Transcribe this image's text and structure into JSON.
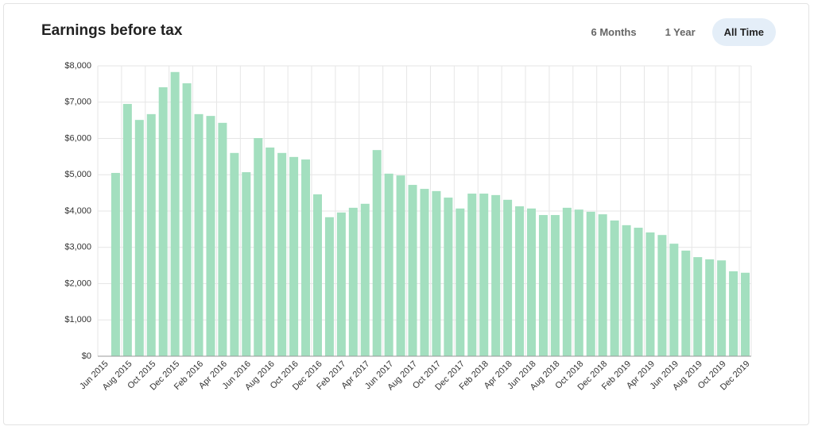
{
  "title": "Earnings before tax",
  "buttons": [
    "6 Months",
    "1 Year",
    "All Time"
  ],
  "active_button": 2,
  "chart_data": {
    "type": "bar",
    "color": "#a3dfbf",
    "grid": true,
    "categories": [
      "Jun 2015",
      null,
      "Aug 2015",
      null,
      "Oct 2015",
      null,
      "Dec 2015",
      null,
      "Feb 2016",
      null,
      "Apr 2016",
      null,
      "Jun 2016",
      null,
      "Aug 2016",
      null,
      "Oct 2016",
      null,
      "Dec 2016",
      null,
      "Feb 2017",
      null,
      "Apr 2017",
      null,
      "Jun 2017",
      null,
      "Aug 2017",
      null,
      "Oct 2017",
      null,
      "Dec 2017",
      null,
      "Feb 2018",
      null,
      "Apr 2018",
      null,
      "Jun 2018",
      null,
      "Aug 2018",
      null,
      "Oct 2018",
      null,
      "Dec 2018",
      null,
      "Feb 2019",
      null,
      "Apr 2019",
      null,
      "Jun 2019",
      null,
      "Aug 2019",
      null,
      "Oct 2019",
      null,
      "Dec 2019"
    ],
    "values": [
      null,
      5050,
      6950,
      6510,
      6670,
      7410,
      7830,
      7520,
      6670,
      6620,
      6430,
      5600,
      5070,
      6010,
      5750,
      5600,
      5490,
      5420,
      4460,
      3830,
      3960,
      4090,
      4200,
      5680,
      5030,
      4980,
      4720,
      4610,
      4550,
      4370,
      4070,
      4480,
      4480,
      4440,
      4310,
      4130,
      4070,
      3890,
      3890,
      4090,
      4040,
      3980,
      3910,
      3740,
      3610,
      3540,
      3410,
      3340,
      3100,
      2910,
      2730,
      2670,
      2640,
      2340,
      2300
    ],
    "ylim": [
      0,
      8000
    ],
    "yticks": [
      {
        "value": 0,
        "label": "$0"
      },
      {
        "value": 1000,
        "label": "$1,000"
      },
      {
        "value": 2000,
        "label": "$2,000"
      },
      {
        "value": 3000,
        "label": "$3,000"
      },
      {
        "value": 4000,
        "label": "$4,000"
      },
      {
        "value": 5000,
        "label": "$5,000"
      },
      {
        "value": 6000,
        "label": "$6,000"
      },
      {
        "value": 7000,
        "label": "$7,000"
      },
      {
        "value": 8000,
        "label": "$8,000"
      }
    ]
  }
}
